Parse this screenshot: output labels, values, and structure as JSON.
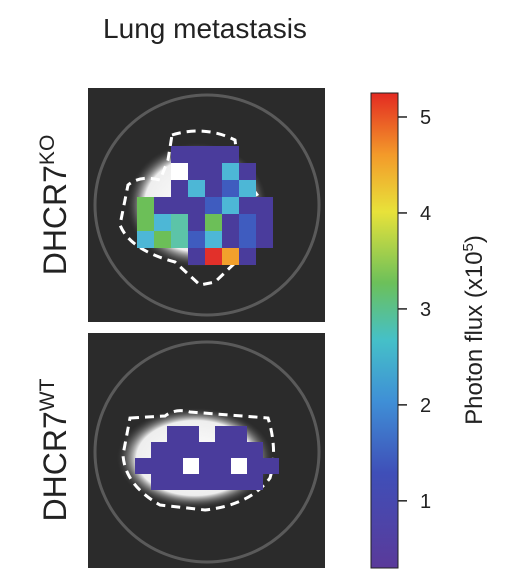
{
  "title": "Lung metastasis",
  "panels": [
    {
      "label": "DHCR7",
      "superscript": "KO"
    },
    {
      "label": "DHCR7",
      "superscript": "WT"
    }
  ],
  "colorbar": {
    "label": "Photon flux (x10",
    "superscript": "5",
    "label_end": ")",
    "range": [
      0.3,
      5.25
    ],
    "ticks": [
      1,
      2,
      3,
      4,
      5
    ]
  }
}
